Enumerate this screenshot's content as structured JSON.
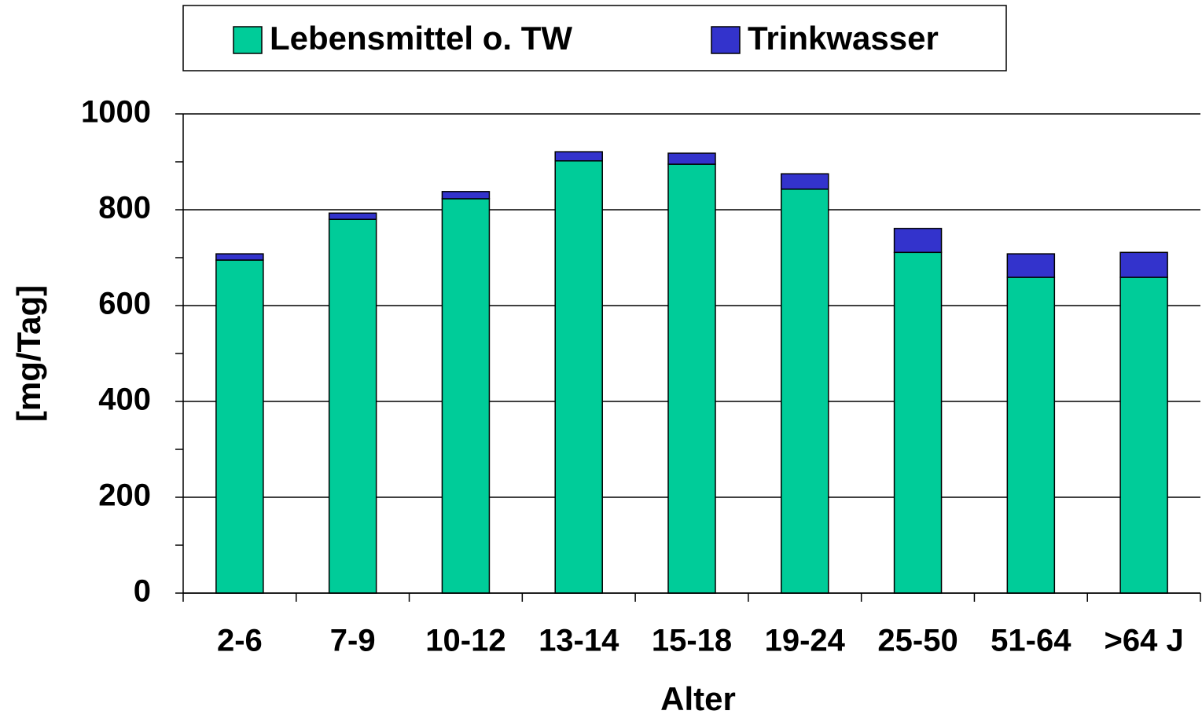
{
  "chart_data": {
    "type": "stacked_bar",
    "categories": [
      "2-6",
      "7-9",
      "10-12",
      "13-14",
      "15-18",
      "19-24",
      "25-50",
      "51-64",
      ">64 J"
    ],
    "series": [
      {
        "name": "Lebensmittel o. TW",
        "color": "#00cc99",
        "values": [
          695,
          780,
          823,
          902,
          895,
          843,
          711,
          659,
          659
        ]
      },
      {
        "name": "Trinkwasser",
        "color": "#3333cc",
        "values": [
          13,
          13,
          15,
          19,
          23,
          32,
          50,
          49,
          52
        ]
      }
    ],
    "ylim": [
      0,
      1000
    ],
    "yticks": [
      0,
      200,
      400,
      600,
      800,
      1000
    ],
    "minor_yticks": [
      100,
      300,
      500,
      700,
      900
    ],
    "grid": true,
    "xlabel": "Alter",
    "ylabel": "[mg/Tag]"
  }
}
